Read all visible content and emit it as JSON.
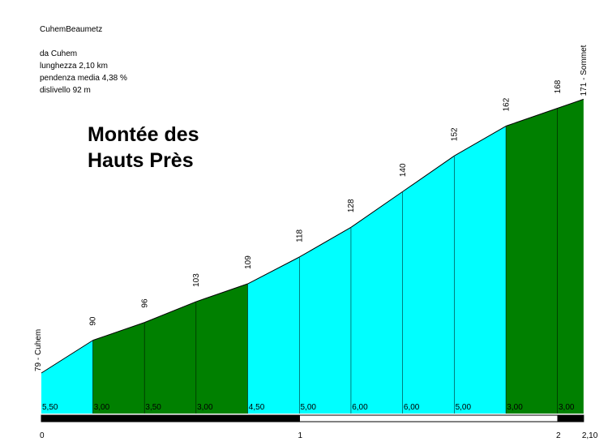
{
  "info": {
    "climb_name": "CuhemBeaumetz",
    "from": "da Cuhem",
    "length": "lunghezza 2,10 km",
    "avg_gradient": "pendenza media 4,38 %",
    "elevation_gain": "dislivello 92 m"
  },
  "title_line1": "Montée des",
  "title_line2": "Hauts Près",
  "colors": {
    "flat": "#00ffff",
    "steep": "#008000",
    "outline": "#000000",
    "bar_dark": "#000000",
    "bar_light": "#ffffff"
  },
  "chart_data": {
    "type": "area",
    "x_unit": "km",
    "xlim": [
      0,
      2.1
    ],
    "x": [
      0,
      0.2,
      0.4,
      0.6,
      0.8,
      1.0,
      1.2,
      1.4,
      1.6,
      1.8,
      2.0,
      2.1
    ],
    "elevations": [
      79,
      90,
      96,
      103,
      109,
      118,
      128,
      140,
      152,
      162,
      168,
      171
    ],
    "elevation_labels": [
      "79 - Cuhem",
      "90",
      "96",
      "103",
      "109",
      "118",
      "128",
      "140",
      "152",
      "162",
      "168",
      "171 - Sommet"
    ],
    "segments": [
      {
        "gradient": "5,50",
        "color": "flat"
      },
      {
        "gradient": "3,00",
        "color": "steep"
      },
      {
        "gradient": "3,50",
        "color": "steep"
      },
      {
        "gradient": "3,00",
        "color": "steep"
      },
      {
        "gradient": "4,50",
        "color": "flat"
      },
      {
        "gradient": "5,00",
        "color": "flat"
      },
      {
        "gradient": "6,00",
        "color": "flat"
      },
      {
        "gradient": "6,00",
        "color": "flat"
      },
      {
        "gradient": "5,00",
        "color": "flat"
      },
      {
        "gradient": "3,00",
        "color": "steep"
      },
      {
        "gradient": "3,00",
        "color": "steep"
      }
    ],
    "km_ticks": [
      {
        "value": 0,
        "label": "0"
      },
      {
        "value": 1,
        "label": "1"
      },
      {
        "value": 2,
        "label": "2"
      },
      {
        "value": 2.1,
        "label": "2,10"
      }
    ]
  }
}
